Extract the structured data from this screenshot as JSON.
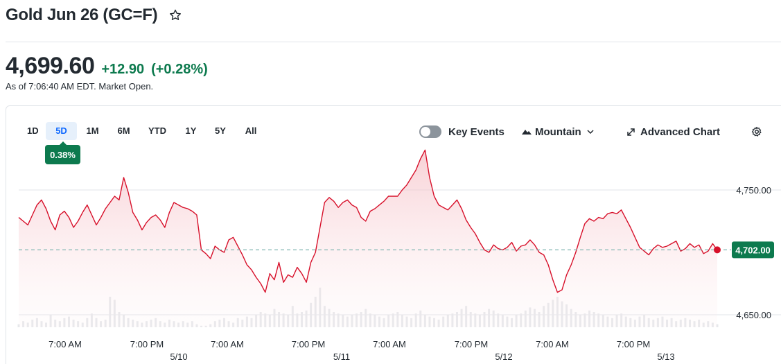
{
  "header": {
    "title": "Gold Jun 26 (GC=F)",
    "star_icon": "star-icon"
  },
  "quote": {
    "price": "4,699.60",
    "change": "+12.90",
    "change_pct": "(+0.28%)",
    "as_of": "As of 7:06:40 AM EDT. Market Open."
  },
  "ranges": [
    "1D",
    "5D",
    "1M",
    "6M",
    "YTD",
    "1Y",
    "5Y",
    "All"
  ],
  "active_range": "5D",
  "range_change_badge": "0.38%",
  "toolbar": {
    "key_events_label": "Key Events",
    "chart_type_label": "Mountain",
    "advanced_chart_label": "Advanced Chart",
    "settings_icon": "gear-icon"
  },
  "colors": {
    "line": "#d7102a",
    "positive": "#0d7a4e",
    "active_range": "#0f69ff",
    "grid": "#e0e4e9",
    "reference": "#7fb5b0"
  },
  "chart_data": {
    "type": "area",
    "x_tick_labels": [
      "7:00 AM",
      "7:00 PM",
      "7:00 AM",
      "7:00 PM",
      "7:00 AM",
      "7:00 PM",
      "7:00 AM",
      "7:00 PM"
    ],
    "date_labels": [
      "5/10",
      "5/11",
      "5/12",
      "5/13"
    ],
    "y_tick_labels": [
      "4,750.00",
      "4,650.00"
    ],
    "ylim": [
      4640,
      4800
    ],
    "reference_value": 4702,
    "last_value_label": "4,702.00",
    "series": [
      {
        "values": [
          4728,
          4725,
          4722,
          4730,
          4738,
          4742,
          4735,
          4725,
          4718,
          4730,
          4733,
          4728,
          4720,
          4725,
          4732,
          4738,
          4730,
          4722,
          4728,
          4735,
          4740,
          4745,
          4742,
          4760,
          4748,
          4732,
          4726,
          4718,
          4724,
          4728,
          4730,
          4726,
          4720,
          4732,
          4740,
          4738,
          4736,
          4735,
          4733,
          4730,
          4702,
          4699,
          4695,
          4705,
          4702,
          4700,
          4710,
          4712,
          4705,
          4698,
          4690,
          4686,
          4680,
          4675,
          4668,
          4683,
          4678,
          4692,
          4676,
          4682,
          4680,
          4688,
          4683,
          4676,
          4692,
          4700,
          4720,
          4740,
          4744,
          4741,
          4736,
          4740,
          4742,
          4738,
          4736,
          4728,
          4725,
          4733,
          4735,
          4738,
          4741,
          4745,
          4745,
          4745,
          4750,
          4754,
          4760,
          4766,
          4775,
          4782,
          4760,
          4745,
          4738,
          4736,
          4734,
          4738,
          4742,
          4735,
          4726,
          4720,
          4715,
          4708,
          4702,
          4700,
          4706,
          4703,
          4702,
          4704,
          4708,
          4701,
          4705,
          4706,
          4710,
          4706,
          4700,
          4698,
          4690,
          4678,
          4668,
          4670,
          4682,
          4690,
          4700,
          4712,
          4723,
          4727,
          4725,
          4728,
          4727,
          4731,
          4732,
          4731,
          4734,
          4727,
          4720,
          4712,
          4704,
          4701,
          4698,
          4703,
          4706,
          4704,
          4705,
          4707,
          4709,
          4701,
          4703,
          4707,
          4704,
          4706,
          4699,
          4701,
          4707,
          4702
        ]
      }
    ],
    "volume_values": [
      2,
      4,
      3,
      5,
      6,
      4,
      3,
      8,
      5,
      4,
      6,
      7,
      5,
      4,
      3,
      6,
      9,
      6,
      4,
      5,
      20,
      18,
      10,
      8,
      6,
      5,
      4,
      3,
      4,
      5,
      6,
      4,
      3,
      5,
      4,
      3,
      4,
      3,
      4,
      2,
      1,
      1,
      2,
      4,
      5,
      6,
      4,
      3,
      6,
      5,
      7,
      6,
      8,
      10,
      9,
      8,
      12,
      10,
      9,
      8,
      14,
      9,
      10,
      11,
      16,
      20,
      26,
      14,
      12,
      10,
      9,
      8,
      7,
      8,
      9,
      10,
      12,
      9,
      8,
      7,
      6,
      8,
      9,
      10,
      8,
      7,
      6,
      9,
      11,
      8,
      7,
      6,
      5,
      7,
      8,
      9,
      10,
      12,
      14,
      10,
      9,
      8,
      10,
      12,
      11,
      9,
      8,
      7,
      6,
      8,
      9,
      11,
      13,
      12,
      10,
      14,
      16,
      18,
      20,
      17,
      15,
      12,
      10,
      8,
      9,
      11,
      10,
      9,
      8,
      7,
      6,
      8,
      9,
      7,
      6,
      5,
      7,
      8,
      6,
      5,
      6,
      7,
      5,
      6,
      4,
      5,
      6,
      5,
      4,
      5,
      3,
      4,
      3,
      2
    ]
  }
}
